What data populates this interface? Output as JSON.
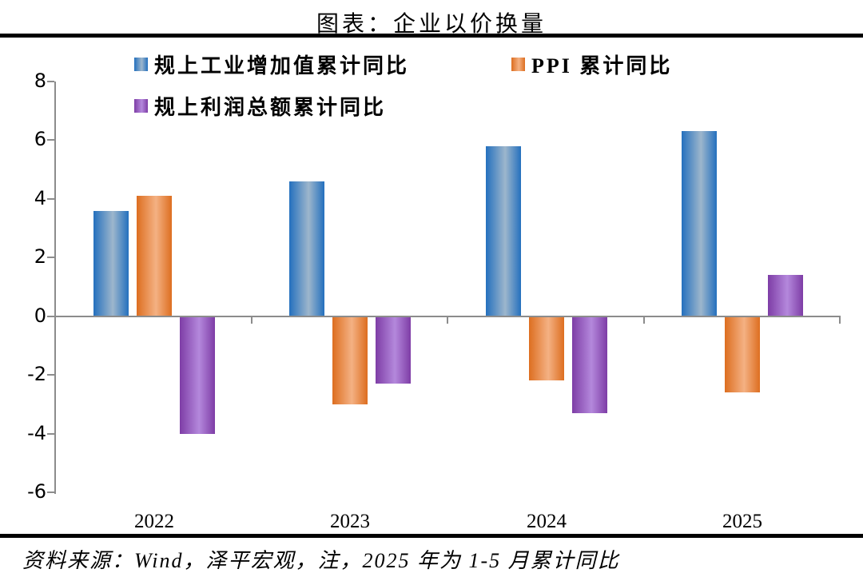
{
  "title": "图表：企业以价换量",
  "footer": "资料来源：Wind，泽平宏观，注，2025 年为 1-5 月累计同比",
  "colors": {
    "axis": "#8c8c8c",
    "rule": "#000000"
  },
  "chart_data": {
    "type": "bar",
    "categories": [
      "2022",
      "2023",
      "2024",
      "2025"
    ],
    "series": [
      {
        "key": "industrial-value-added",
        "name": "规上工业增加值累计同比",
        "values": [
          3.6,
          4.6,
          5.8,
          6.3
        ],
        "color_edge": "#2470be",
        "color_center": "#9db6cc"
      },
      {
        "key": "ppi",
        "name": "PPI 累计同比",
        "values": [
          4.1,
          -3.0,
          -2.2,
          -2.6
        ],
        "color_edge": "#dd6e20",
        "color_center": "#f4b183"
      },
      {
        "key": "industrial-profit",
        "name": "规上利润总额累计同比",
        "values": [
          -4.0,
          -2.3,
          -3.3,
          1.4
        ],
        "color_edge": "#7e3da6",
        "color_center": "#b488dc"
      }
    ],
    "ylim": [
      -6,
      8
    ],
    "yticks": [
      8,
      6,
      4,
      2,
      0,
      -2,
      -4,
      -6
    ],
    "grid": false,
    "legend_position": "top-left"
  }
}
